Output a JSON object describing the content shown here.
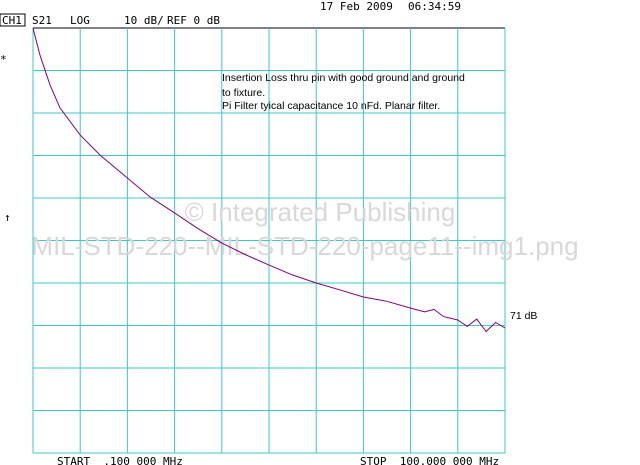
{
  "chart_data": {
    "type": "line",
    "channel": "CH1",
    "parameter": "S21",
    "format": "LOG",
    "scale": "10 dB/",
    "reference": "REF 0 dB",
    "date": "17 Feb 2009",
    "time": "06:34:59",
    "annotations": [
      "Insertion Loss thru pin with good ground and ground",
      "to fixture.",
      "Pi Filter tyical capacitance 10 nFd. Planar filter."
    ],
    "end_label": "71 dB",
    "start_label": "START  .100 000 MHz",
    "stop_label": "STOP  100.000 000 MHz",
    "markers": [
      "*",
      "↑"
    ],
    "watermarks": [
      "© Integrated Publishing",
      "MIL-STD-220--MIL-STD-220-page11--img1.png"
    ],
    "x": [
      0.1,
      1.58,
      3.7,
      5.82,
      10.09,
      14.3,
      20.08,
      24.95,
      30.06,
      35,
      40.05,
      45,
      50.04,
      55,
      60.03,
      65,
      70.02,
      75,
      80.01,
      83,
      85,
      87,
      90,
      92,
      94,
      96,
      98,
      100
    ],
    "values": [
      0,
      -6.4,
      -13.4,
      -18.8,
      -25.2,
      -29.9,
      -35.3,
      -39.8,
      -43.5,
      -47.2,
      -50.6,
      -53.3,
      -55.8,
      -58.1,
      -60,
      -61.6,
      -63.3,
      -64.3,
      -65.9,
      -66.8,
      -66.2,
      -67.9,
      -68.7,
      -70.2,
      -68.5,
      -71.4,
      -69.3,
      -70.6
    ],
    "color": "#800080",
    "grid_color": "#3cc8c8",
    "xlim": [
      0.1,
      100
    ],
    "ylim": [
      -100,
      0
    ],
    "xticks": [
      0.1,
      10.09,
      20.08,
      30.07,
      40.06,
      50.05,
      60.04,
      70.03,
      80.02,
      90.01,
      100
    ],
    "yticks": [
      0,
      -10,
      -20,
      -30,
      -40,
      -50,
      -60,
      -70,
      -80,
      -90,
      -100
    ],
    "grid": true
  }
}
